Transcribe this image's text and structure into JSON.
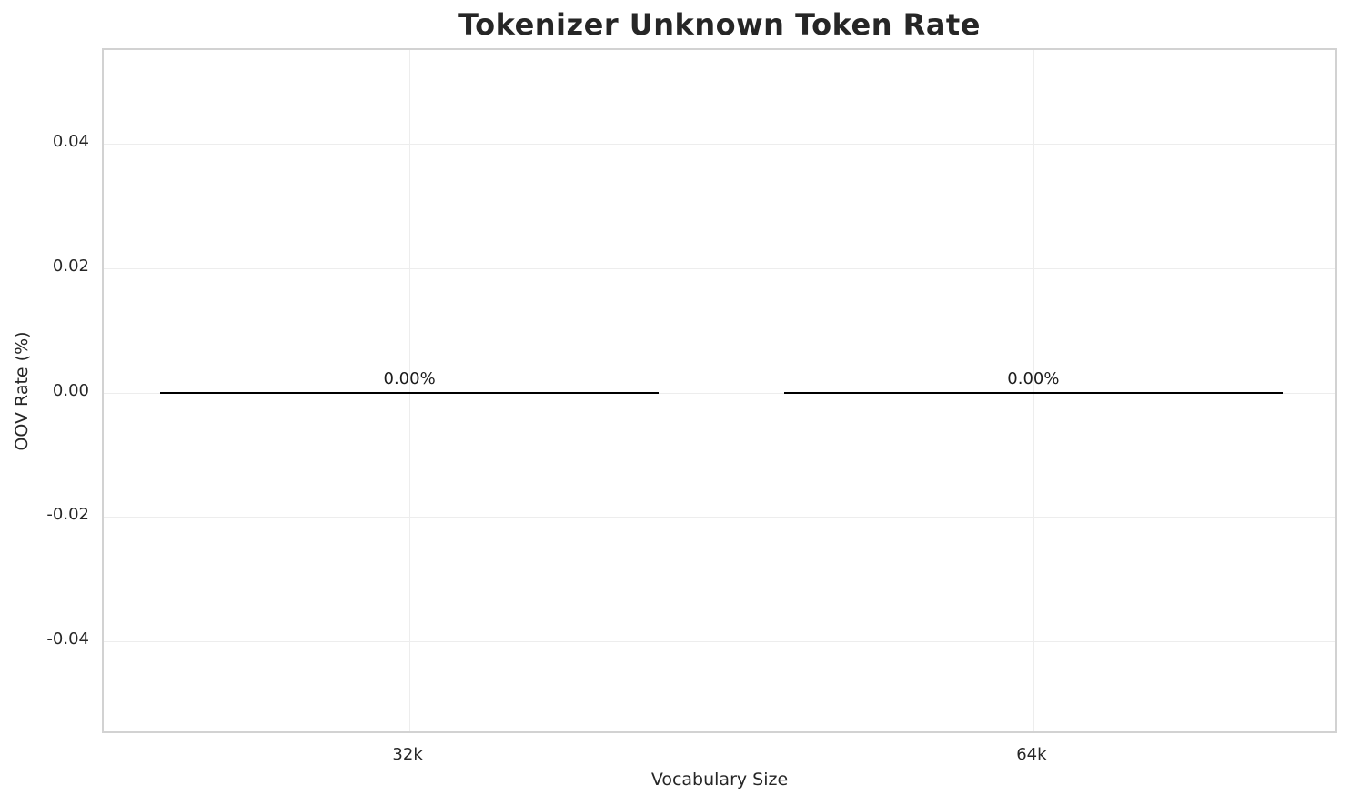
{
  "chart_data": {
    "type": "bar",
    "title": "Tokenizer Unknown Token Rate",
    "xlabel": "Vocabulary Size",
    "ylabel": "OOV Rate (%)",
    "categories": [
      "32k",
      "64k"
    ],
    "values": [
      0.0,
      0.0
    ],
    "bar_labels": [
      "0.00%",
      "0.00%"
    ],
    "bar_width": 0.8,
    "xlim": [
      -0.49,
      1.49
    ],
    "ylim": [
      -0.055,
      0.055
    ],
    "yticks": [
      0.04,
      0.02,
      0.0,
      -0.02,
      -0.04
    ],
    "ytick_labels": [
      "0.04",
      "0.02",
      "0.00",
      "-0.02",
      "-0.04"
    ],
    "grid": true,
    "legend_position": "none",
    "colors": {
      "background": "#ffffff",
      "plot_border": "#d2d2d2",
      "gridline": "#ededed",
      "text": "#262626",
      "bar_edge": "#000000",
      "bar_fill": "transparent"
    }
  }
}
